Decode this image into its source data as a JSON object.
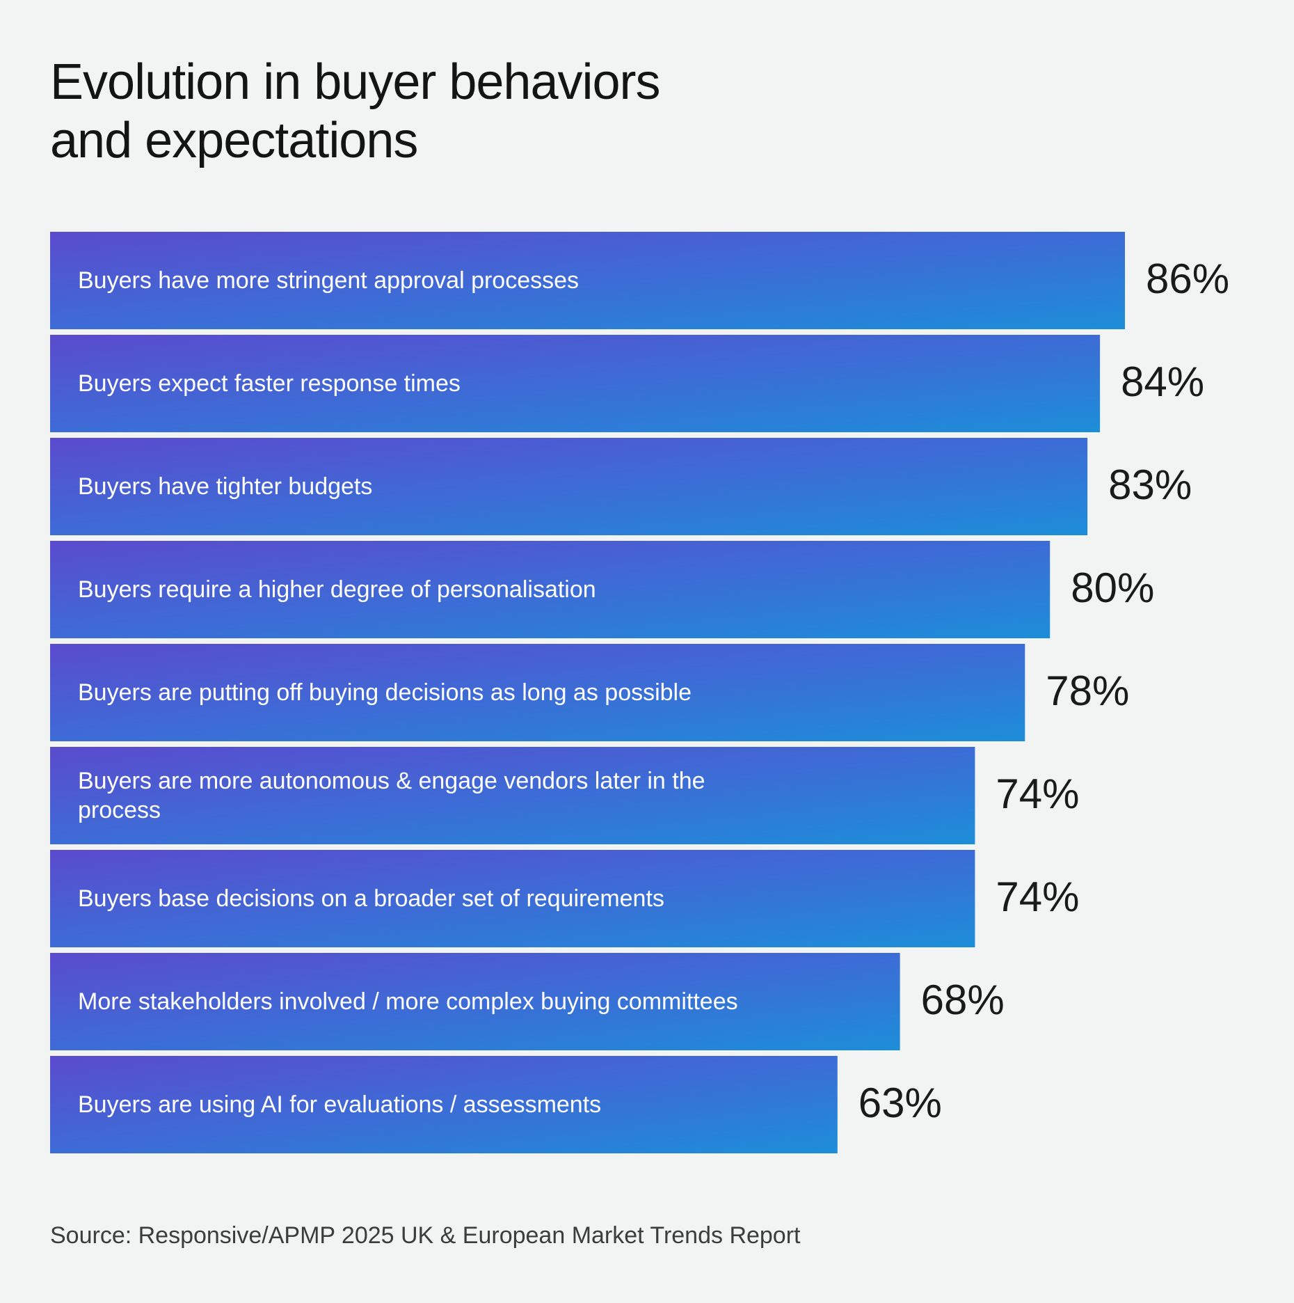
{
  "title_line1": "Evolution in buyer behaviors",
  "title_line2": "and expectations",
  "source": "Source: Responsive/APMP 2025 UK & European Market Trends Report",
  "colors": {
    "background": "#f2f4f3",
    "bar_gradient_start": "#5b4bce",
    "bar_gradient_mid": "#3a6fd6",
    "bar_gradient_end": "#1c8ed8",
    "text_dark": "#141414",
    "text_light": "#ffffff"
  },
  "chart_data": {
    "type": "bar",
    "orientation": "horizontal",
    "title": "Evolution in buyer behaviors and expectations",
    "categories": [
      "Buyers have more stringent approval processes",
      "Buyers expect faster response times",
      "Buyers have tighter budgets",
      "Buyers require a higher degree of personalisation",
      "Buyers are putting off buying decisions as long as possible",
      "Buyers are more autonomous & engage vendors later in the process",
      "Buyers base decisions on a broader set of requirements",
      "More stakeholders involved / more complex buying committees",
      "Buyers are using AI for evaluations / assessments"
    ],
    "values": [
      86,
      84,
      83,
      80,
      78,
      74,
      74,
      68,
      63
    ],
    "value_labels": [
      "86%",
      "84%",
      "83%",
      "80%",
      "78%",
      "74%",
      "74%",
      "68%",
      "63%"
    ],
    "unit": "%",
    "xlabel": "",
    "ylabel": "",
    "grid": false,
    "legend": "none"
  }
}
